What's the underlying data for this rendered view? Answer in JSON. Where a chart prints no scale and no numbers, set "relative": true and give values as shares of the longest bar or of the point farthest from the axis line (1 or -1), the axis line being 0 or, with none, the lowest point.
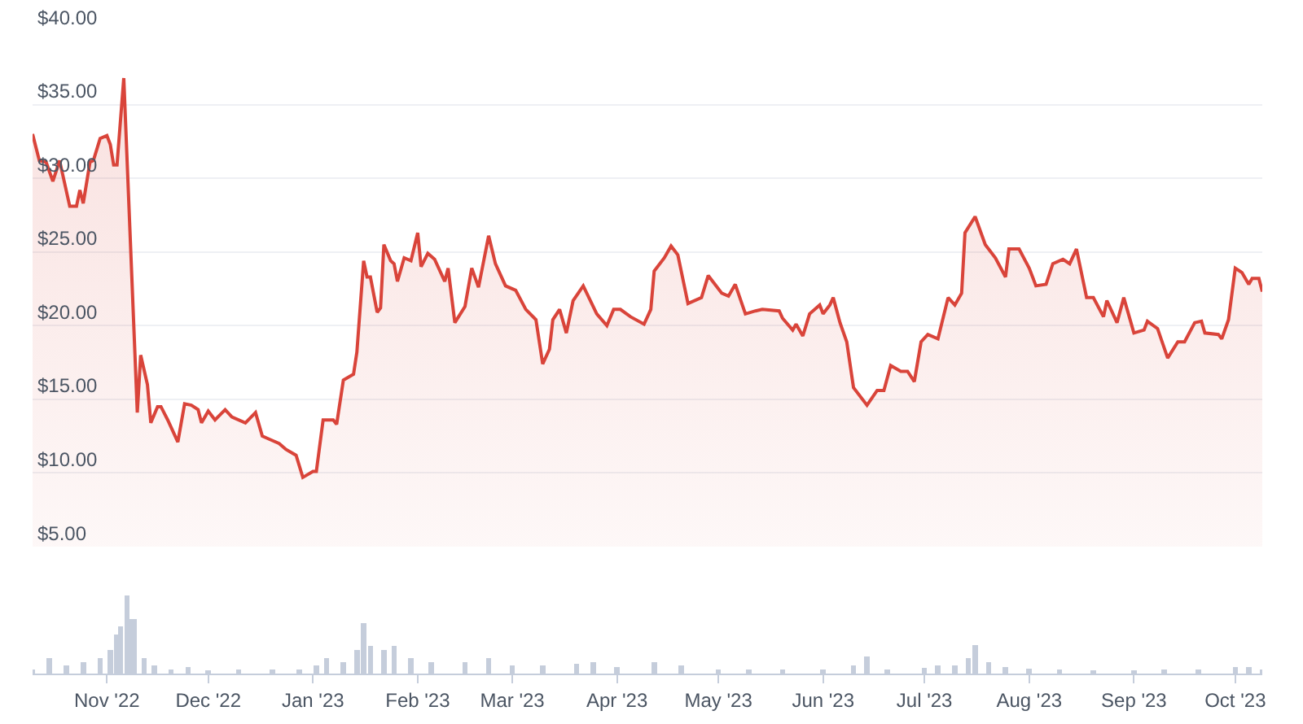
{
  "chart_data": [
    {
      "type": "area",
      "color": "#d9443a",
      "xlim": [
        "2022-10-10",
        "2023-10-09"
      ],
      "ylim": [
        5,
        40
      ],
      "yticks": [
        {
          "value": 5,
          "label": "$5.00"
        },
        {
          "value": 10,
          "label": "$10.00"
        },
        {
          "value": 15,
          "label": "$15.00"
        },
        {
          "value": 20,
          "label": "$20.00"
        },
        {
          "value": 25,
          "label": "$25.00"
        },
        {
          "value": 30,
          "label": "$30.00"
        },
        {
          "value": 35,
          "label": "$35.00"
        },
        {
          "value": 40,
          "label": "$40.00"
        }
      ],
      "grid": "y",
      "tick_labels": "y",
      "x": [
        "2022-10-10",
        "2022-10-12",
        "2022-10-14",
        "2022-10-16",
        "2022-10-18",
        "2022-10-21",
        "2022-10-23",
        "2022-10-24",
        "2022-10-25",
        "2022-10-27",
        "2022-10-28",
        "2022-10-30",
        "2022-11-01",
        "2022-11-02",
        "2022-11-03",
        "2022-11-04",
        "2022-11-06",
        "2022-11-07",
        "2022-11-10",
        "2022-11-11",
        "2022-11-13",
        "2022-11-14",
        "2022-11-16",
        "2022-11-17",
        "2022-11-19",
        "2022-11-22",
        "2022-11-24",
        "2022-11-26",
        "2022-11-28",
        "2022-11-29",
        "2022-12-01",
        "2022-12-03",
        "2022-12-06",
        "2022-12-08",
        "2022-12-12",
        "2022-12-15",
        "2022-12-17",
        "2022-12-19",
        "2022-12-22",
        "2022-12-24",
        "2022-12-27",
        "2022-12-29",
        "2023-01-01",
        "2023-01-02",
        "2023-01-04",
        "2023-01-07",
        "2023-01-08",
        "2023-01-10",
        "2023-01-13",
        "2023-01-14",
        "2023-01-16",
        "2023-01-17",
        "2023-01-18",
        "2023-01-20",
        "2023-01-21",
        "2023-01-22",
        "2023-01-24",
        "2023-01-25",
        "2023-01-26",
        "2023-01-28",
        "2023-01-30",
        "2023-02-01",
        "2023-02-02",
        "2023-02-04",
        "2023-02-06",
        "2023-02-09",
        "2023-02-10",
        "2023-02-12",
        "2023-02-15",
        "2023-02-17",
        "2023-02-19",
        "2023-02-22",
        "2023-02-24",
        "2023-02-27",
        "2023-03-02",
        "2023-03-05",
        "2023-03-08",
        "2023-03-10",
        "2023-03-12",
        "2023-03-13",
        "2023-03-15",
        "2023-03-17",
        "2023-03-19",
        "2023-03-22",
        "2023-03-26",
        "2023-03-29",
        "2023-03-31",
        "2023-04-02",
        "2023-04-05",
        "2023-04-09",
        "2023-04-11",
        "2023-04-12",
        "2023-04-15",
        "2023-04-17",
        "2023-04-19",
        "2023-04-21",
        "2023-04-22",
        "2023-04-26",
        "2023-04-28",
        "2023-05-02",
        "2023-05-04",
        "2023-05-06",
        "2023-05-09",
        "2023-05-12",
        "2023-05-14",
        "2023-05-19",
        "2023-05-20",
        "2023-05-23",
        "2023-05-24",
        "2023-05-26",
        "2023-05-28",
        "2023-05-31",
        "2023-06-01",
        "2023-06-03",
        "2023-06-04",
        "2023-06-06",
        "2023-06-08",
        "2023-06-10",
        "2023-06-14",
        "2023-06-17",
        "2023-06-19",
        "2023-06-21",
        "2023-06-24",
        "2023-06-26",
        "2023-06-28",
        "2023-06-30",
        "2023-07-02",
        "2023-07-05",
        "2023-07-08",
        "2023-07-10",
        "2023-07-12",
        "2023-07-13",
        "2023-07-16",
        "2023-07-19",
        "2023-07-22",
        "2023-07-25",
        "2023-07-26",
        "2023-07-29",
        "2023-08-01",
        "2023-08-03",
        "2023-08-06",
        "2023-08-08",
        "2023-08-11",
        "2023-08-13",
        "2023-08-15",
        "2023-08-18",
        "2023-08-20",
        "2023-08-23",
        "2023-08-24",
        "2023-08-27",
        "2023-08-29",
        "2023-09-01",
        "2023-09-04",
        "2023-09-05",
        "2023-09-08",
        "2023-09-11",
        "2023-09-14",
        "2023-09-16",
        "2023-09-19",
        "2023-09-21",
        "2023-09-22",
        "2023-09-26",
        "2023-09-27",
        "2023-09-29",
        "2023-10-01",
        "2023-10-03",
        "2023-10-05",
        "2023-10-06",
        "2023-10-08",
        "2023-10-09"
      ],
      "values": [
        33.0,
        31.2,
        31.1,
        29.8,
        31.2,
        28.1,
        28.1,
        29.2,
        28.3,
        31.1,
        31.2,
        32.7,
        32.9,
        32.3,
        30.9,
        30.9,
        36.8,
        31.1,
        14.1,
        18.0,
        16.0,
        13.4,
        14.5,
        14.5,
        13.6,
        12.1,
        14.7,
        14.6,
        14.3,
        13.4,
        14.2,
        13.6,
        14.3,
        13.8,
        13.4,
        14.1,
        12.5,
        12.3,
        12.0,
        11.6,
        11.2,
        9.7,
        10.1,
        10.1,
        13.6,
        13.6,
        13.3,
        16.3,
        16.7,
        18.2,
        24.4,
        23.3,
        23.3,
        20.9,
        21.2,
        25.5,
        24.4,
        24.2,
        23.0,
        24.6,
        24.4,
        26.3,
        24.0,
        24.9,
        24.5,
        23.0,
        23.9,
        20.2,
        21.3,
        23.9,
        22.6,
        26.1,
        24.2,
        22.7,
        22.4,
        21.1,
        20.4,
        17.4,
        18.4,
        20.4,
        21.1,
        19.5,
        21.7,
        22.7,
        20.8,
        20.0,
        21.1,
        21.1,
        20.6,
        20.1,
        21.1,
        23.7,
        24.6,
        25.4,
        24.8,
        22.6,
        21.5,
        21.9,
        23.4,
        22.2,
        22.0,
        22.8,
        20.8,
        21.0,
        21.1,
        21.0,
        20.5,
        19.7,
        20.1,
        19.3,
        20.8,
        21.4,
        20.8,
        21.4,
        21.9,
        20.2,
        18.9,
        15.8,
        14.6,
        15.6,
        15.6,
        17.3,
        16.9,
        16.9,
        16.2,
        18.9,
        19.4,
        19.1,
        21.9,
        21.4,
        22.2,
        26.3,
        27.4,
        25.5,
        24.6,
        23.3,
        25.2,
        25.2,
        23.9,
        22.7,
        22.8,
        24.2,
        24.5,
        24.2,
        25.2,
        21.9,
        21.9,
        20.6,
        21.7,
        20.2,
        21.9,
        19.5,
        19.7,
        20.3,
        19.8,
        17.8,
        18.9,
        18.9,
        20.2,
        20.3,
        19.5,
        19.4,
        19.1,
        20.4,
        23.9,
        23.6,
        22.8,
        23.2,
        23.2,
        22.3
      ]
    },
    {
      "type": "bar",
      "relative": true,
      "color": "#c5cddb",
      "xlim": [
        "2022-10-10",
        "2023-10-09"
      ],
      "tick_labels": "x",
      "xticks": [
        {
          "value": "2022-11-01",
          "label": "Nov '22"
        },
        {
          "value": "2022-12-01",
          "label": "Dec '22"
        },
        {
          "value": "2023-01-01",
          "label": "Jan '23"
        },
        {
          "value": "2023-02-01",
          "label": "Feb '23"
        },
        {
          "value": "2023-03-01",
          "label": "Mar '23"
        },
        {
          "value": "2023-04-01",
          "label": "Apr '23"
        },
        {
          "value": "2023-05-01",
          "label": "May '23"
        },
        {
          "value": "2023-06-01",
          "label": "Jun '23"
        },
        {
          "value": "2023-07-01",
          "label": "Jul '23"
        },
        {
          "value": "2023-08-01",
          "label": "Aug '23"
        },
        {
          "value": "2023-09-01",
          "label": "Sep '23"
        },
        {
          "value": "2023-10-01",
          "label": "Oct '23"
        }
      ],
      "x": [
        "2022-10-10",
        "2022-10-15",
        "2022-10-20",
        "2022-10-25",
        "2022-10-30",
        "2022-11-02",
        "2022-11-04",
        "2022-11-05",
        "2022-11-07",
        "2022-11-08",
        "2022-11-09",
        "2022-11-12",
        "2022-11-15",
        "2022-11-20",
        "2022-11-25",
        "2022-12-01",
        "2022-12-10",
        "2022-12-20",
        "2022-12-28",
        "2023-01-02",
        "2023-01-05",
        "2023-01-10",
        "2023-01-14",
        "2023-01-16",
        "2023-01-18",
        "2023-01-22",
        "2023-01-25",
        "2023-01-30",
        "2023-02-05",
        "2023-02-15",
        "2023-02-22",
        "2023-03-01",
        "2023-03-10",
        "2023-03-20",
        "2023-03-25",
        "2023-04-01",
        "2023-04-12",
        "2023-04-20",
        "2023-05-01",
        "2023-05-10",
        "2023-05-20",
        "2023-06-01",
        "2023-06-10",
        "2023-06-14",
        "2023-06-20",
        "2023-07-01",
        "2023-07-05",
        "2023-07-10",
        "2023-07-14",
        "2023-07-16",
        "2023-07-20",
        "2023-07-25",
        "2023-08-01",
        "2023-08-10",
        "2023-08-20",
        "2023-09-01",
        "2023-09-10",
        "2023-09-20",
        "2023-10-01",
        "2023-10-05",
        "2023-10-09"
      ],
      "values": [
        0.05,
        0.2,
        0.1,
        0.15,
        0.2,
        0.3,
        0.5,
        0.6,
        1,
        0.7,
        0.7,
        0.2,
        0.1,
        0.05,
        0.08,
        0.04,
        0.05,
        0.05,
        0.05,
        0.1,
        0.2,
        0.15,
        0.3,
        0.65,
        0.35,
        0.3,
        0.35,
        0.2,
        0.15,
        0.15,
        0.2,
        0.1,
        0.1,
        0.12,
        0.15,
        0.08,
        0.15,
        0.1,
        0.05,
        0.05,
        0.05,
        0.05,
        0.1,
        0.22,
        0.05,
        0.07,
        0.1,
        0.1,
        0.2,
        0.36,
        0.15,
        0.08,
        0.06,
        0.05,
        0.04,
        0.04,
        0.05,
        0.05,
        0.08,
        0.08,
        0.05
      ]
    }
  ]
}
